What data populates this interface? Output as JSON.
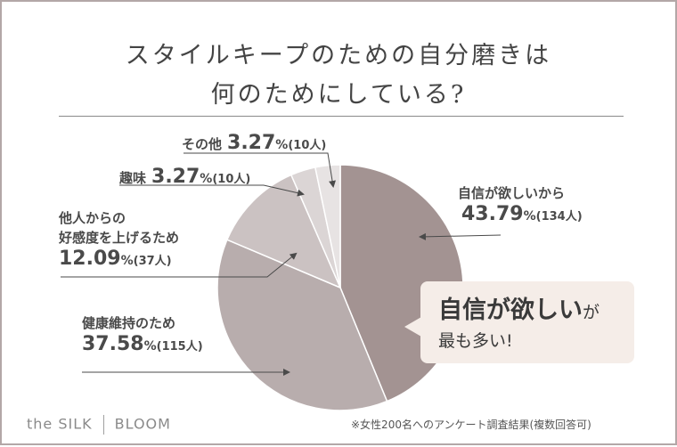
{
  "title": {
    "line1": "スタイルキープのための自分磨きは",
    "line2": "何のためにしている?"
  },
  "chart_data": {
    "type": "pie",
    "slices": [
      {
        "label": "自信が欲しいから",
        "percent": 43.79,
        "count": "(134人)",
        "color": "#a39392"
      },
      {
        "label": "健康維持のため",
        "percent": 37.58,
        "count": "(115人)",
        "color": "#b8adad"
      },
      {
        "label_lines": [
          "他人からの",
          "好感度を上げるため"
        ],
        "percent": 12.09,
        "count": "(37人)",
        "color": "#cbc2c2"
      },
      {
        "label": "趣味",
        "percent": 3.27,
        "count": "(10人)",
        "color": "#dbd5d5"
      },
      {
        "label": "その他",
        "percent": 3.27,
        "count": "(10人)",
        "color": "#e7e3e3"
      }
    ],
    "unit": "%"
  },
  "callout": {
    "big": "自信が欲しい",
    "small": "が",
    "line2": "最も多い!"
  },
  "brand": {
    "left": "the SILK",
    "right": "BLOOM"
  },
  "footnote": "※女性200名へのアンケート調査結果(複数回答可)"
}
